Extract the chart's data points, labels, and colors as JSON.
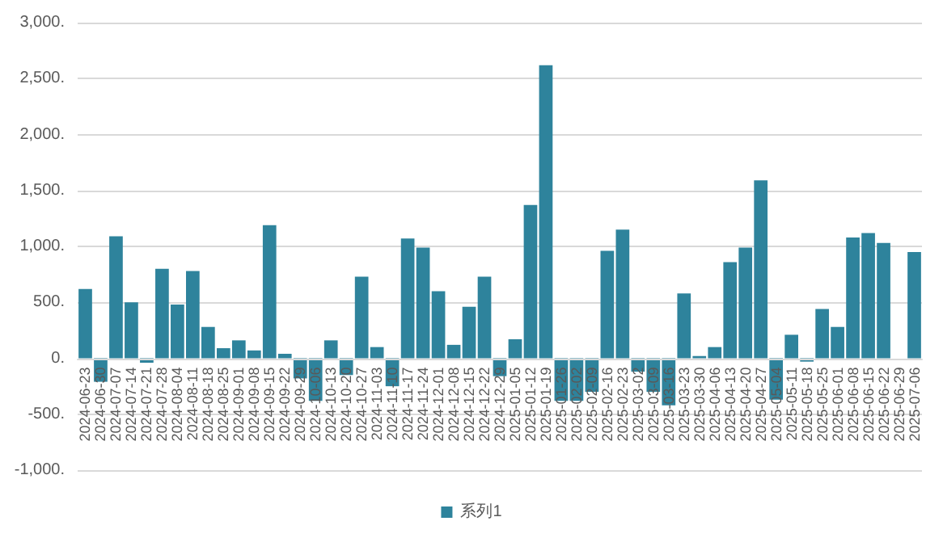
{
  "chart_data": {
    "type": "bar",
    "categories": [
      "2024-06-23",
      "2024-06-30",
      "2024-07-07",
      "2024-07-14",
      "2024-07-21",
      "2024-07-28",
      "2024-08-04",
      "2024-08-11",
      "2024-08-18",
      "2024-08-25",
      "2024-09-01",
      "2024-09-08",
      "2024-09-15",
      "2024-09-22",
      "2024-09-29",
      "2024-10-06",
      "2024-10-13",
      "2024-10-20",
      "2024-10-27",
      "2024-11-03",
      "2024-11-10",
      "2024-11-17",
      "2024-11-24",
      "2024-12-01",
      "2024-12-08",
      "2024-12-15",
      "2024-12-22",
      "2024-12-29",
      "2025-01-05",
      "2025-01-12",
      "2025-01-19",
      "2025-01-26",
      "2025-02-02",
      "2025-02-09",
      "2025-02-16",
      "2025-02-23",
      "2025-03-02",
      "2025-03-09",
      "2025-03-16",
      "2025-03-23",
      "2025-03-30",
      "2025-04-06",
      "2025-04-13",
      "2025-04-20",
      "2025-04-27",
      "2025-05-04",
      "2025-05-11",
      "2025-05-18",
      "2025-05-25",
      "2025-06-01",
      "2025-06-08",
      "2025-06-15",
      "2025-06-22",
      "2025-06-29",
      "2025-07-06"
    ],
    "series": [
      {
        "name": "系列1",
        "color": "#2e839c",
        "values": [
          620,
          -210,
          1090,
          500,
          -40,
          800,
          480,
          780,
          280,
          90,
          160,
          70,
          1190,
          40,
          -180,
          -380,
          160,
          -150,
          730,
          100,
          -250,
          1070,
          990,
          600,
          120,
          460,
          730,
          -160,
          170,
          1370,
          2620,
          -380,
          -380,
          -300,
          960,
          1150,
          -120,
          -300,
          -420,
          580,
          20,
          100,
          860,
          990,
          1590,
          -370,
          210,
          -30,
          440,
          280,
          1080,
          1120,
          1030,
          null,
          950
        ]
      }
    ],
    "ylim": [
      -1000,
      3000
    ],
    "yticks": [
      {
        "value": -1000,
        "label": "-1,000."
      },
      {
        "value": -500,
        "label": "-500."
      },
      {
        "value": 0,
        "label": "0."
      },
      {
        "value": 500,
        "label": "500."
      },
      {
        "value": 1000,
        "label": "1,000."
      },
      {
        "value": 1500,
        "label": "1,500."
      },
      {
        "value": 2000,
        "label": "2,000."
      },
      {
        "value": 2500,
        "label": "2,500."
      },
      {
        "value": 3000,
        "label": "3,000."
      }
    ],
    "grid": "y",
    "legend": "bottom"
  }
}
